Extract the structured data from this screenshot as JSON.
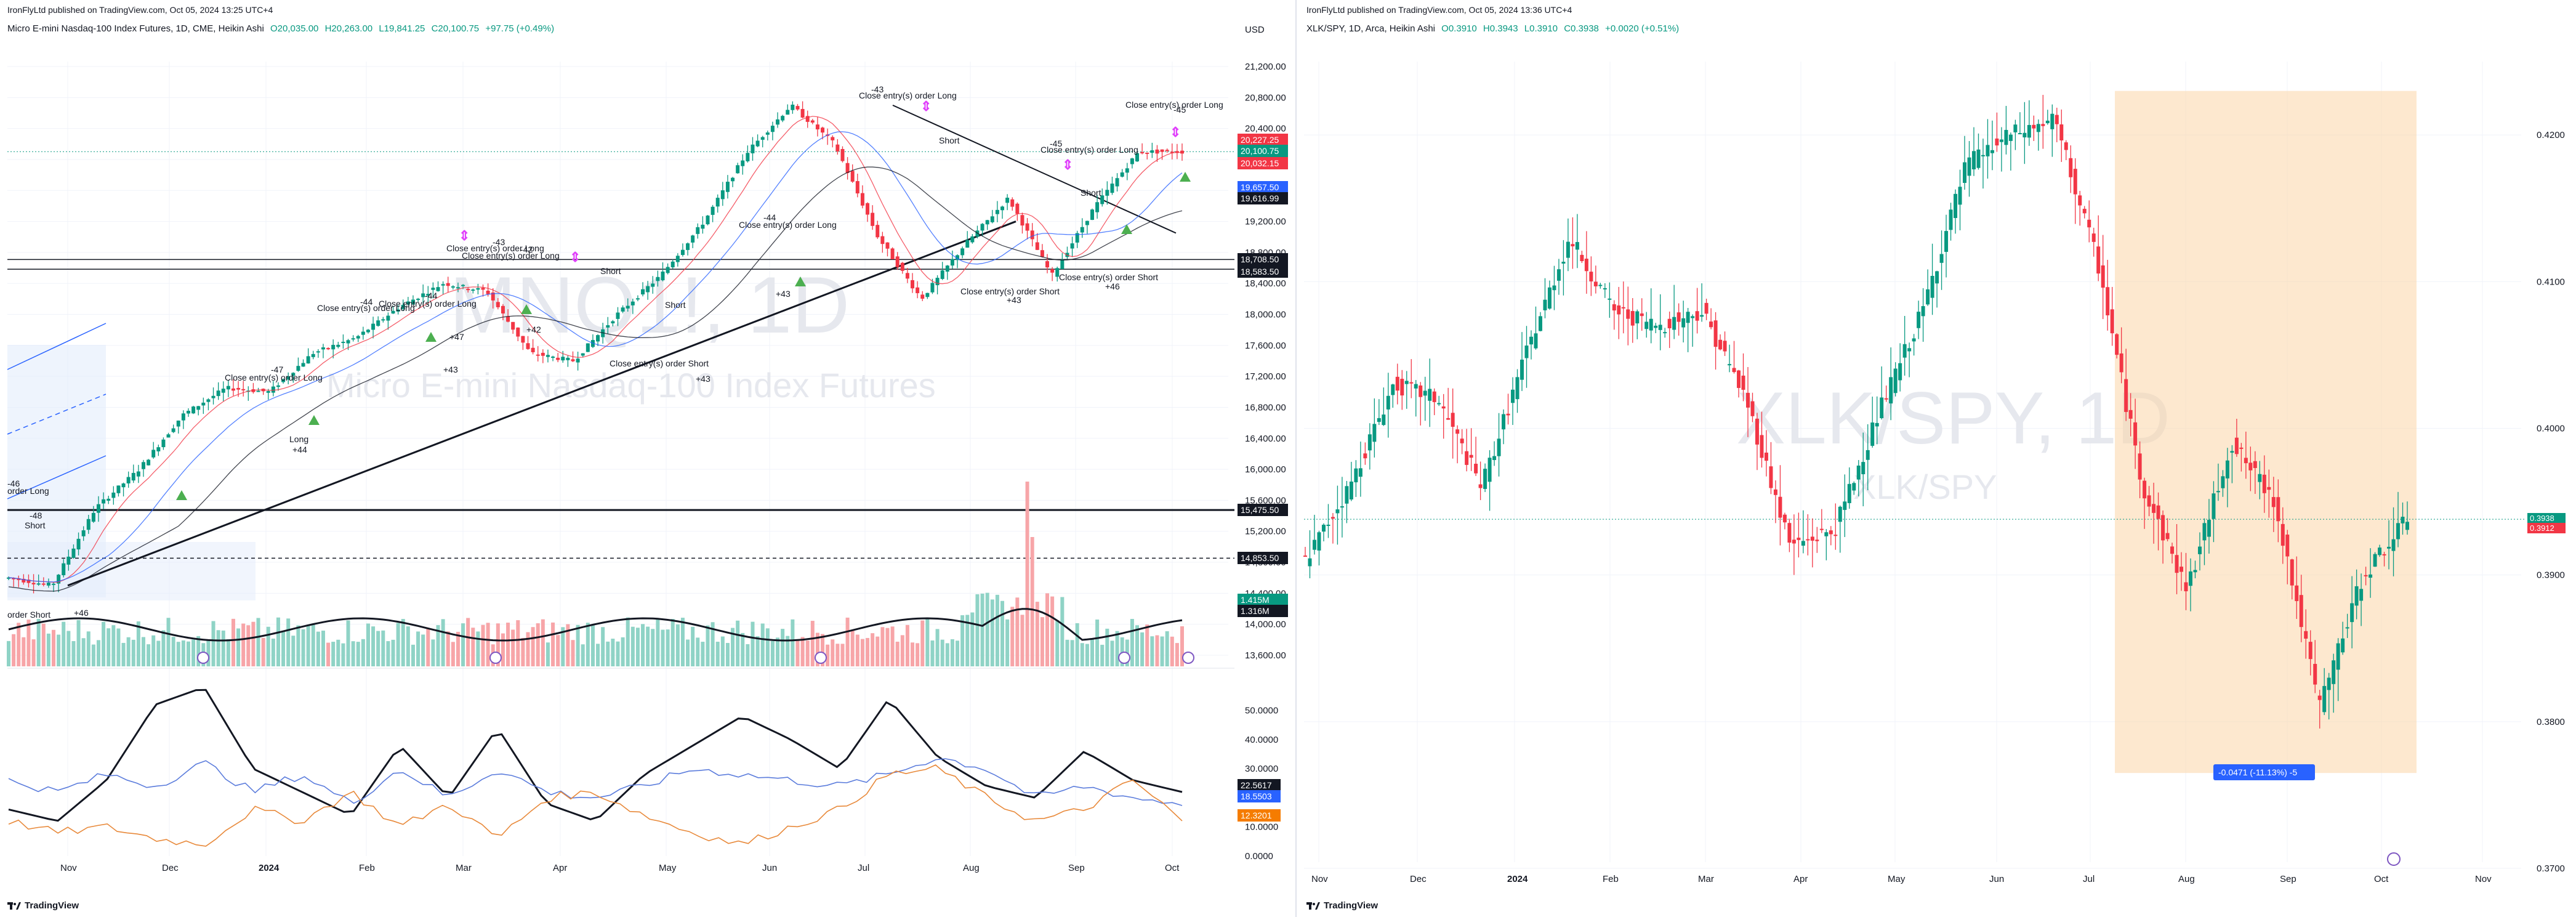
{
  "left": {
    "published": "IronFlyLtd published on TradingView.com, Oct 05, 2024 13:25 UTC+4",
    "symbol": "Micro E-mini Nasdaq-100 Index Futures, 1D, CME, Heikin Ashi",
    "ohlc": {
      "o": "O20,035.00",
      "h": "H20,263.00",
      "l": "L19,841.25",
      "c": "C20,100.75",
      "chg": "+97.75 (+0.49%)"
    },
    "currency": "USD",
    "watermark_sym": "MNQ1!, 1D",
    "watermark_name": "Micro E-mini Nasdaq-100 Index Futures",
    "footer": "TradingView",
    "price_ticks": [
      "21,200.00",
      "20,800.00",
      "20,400.00",
      "20,000.00",
      "19,600.00",
      "19,200.00",
      "18,800.00",
      "18,400.00",
      "18,000.00",
      "17,600.00",
      "17,200.00",
      "16,800.00",
      "16,400.00",
      "16,000.00",
      "15,600.00",
      "15,200.00",
      "14,800.00",
      "14,400.00",
      "14,000.00",
      "13,600.00"
    ],
    "price_badges": [
      {
        "label": "20,227.25",
        "color": "#f23645"
      },
      {
        "label": "20,100.75",
        "color": "#089981"
      },
      {
        "label": "20,032.15",
        "color": "#f23645"
      },
      {
        "label": "19,657.50",
        "color": "#2962ff"
      },
      {
        "label": "19,616.99",
        "color": "#131722"
      },
      {
        "label": "18,708.50",
        "color": "#131722"
      },
      {
        "label": "18,583.50",
        "color": "#131722"
      },
      {
        "label": "15,475.50",
        "color": "#131722"
      },
      {
        "label": "14,853.50",
        "color": "#131722"
      },
      {
        "label": "1.415M",
        "color": "#089981"
      },
      {
        "label": "1.316M",
        "color": "#131722"
      }
    ],
    "time_ticks": [
      "Nov",
      "Dec",
      "2024",
      "Feb",
      "Mar",
      "Apr",
      "May",
      "Jun",
      "Jul",
      "Aug",
      "Sep",
      "Oct"
    ],
    "osc_ticks": [
      "50.0000",
      "40.0000",
      "30.0000",
      "20.0000",
      "10.0000",
      "0.0000"
    ],
    "osc_badges": [
      {
        "label": "22.5617",
        "color": "#131722"
      },
      {
        "label": "18.5503",
        "color": "#2962ff"
      },
      {
        "label": "12.3201",
        "color": "#f57c00"
      }
    ],
    "annotations": [
      "Close entry(s) order Long",
      "Close entry(s) order Long",
      "Close entry(s) order Long",
      "Close entry(s) order Long",
      "Close entry(s) order Long",
      "Close entry(s) order Long",
      "Close entry(s) order Long",
      "Close entry(s) order Short",
      "Close entry(s) order Short",
      "Close entry(s) order Short",
      "Close entry(s) order Short",
      "-43",
      "-43",
      "-45",
      "-45",
      "-47",
      "-44",
      "-44",
      "-43",
      "-42",
      "-44",
      "-46",
      "-48",
      "+44",
      "+47",
      "+42",
      "+43",
      "+46",
      "+43",
      "+43",
      "Long",
      "Short"
    ]
  },
  "right": {
    "published": "IronFlyLtd published on TradingView.com, Oct 05, 2024 13:36 UTC+4",
    "symbol": "XLK/SPY, 1D, Arca, Heikin Ashi",
    "ohlc": {
      "o": "O0.3910",
      "h": "H0.3943",
      "l": "L0.3910",
      "c": "C0.3938",
      "chg": "+0.0020 (+0.51%)"
    },
    "watermark_sym": "XLK/SPY, 1D",
    "watermark_name": "XLK/SPY",
    "footer": "TradingView",
    "price_ticks": [
      "0.4200",
      "0.4100",
      "0.4000",
      "0.3900",
      "0.3800",
      "0.3700"
    ],
    "price_badges": [
      {
        "label": "0.3938",
        "color": "#089981"
      },
      {
        "label": "0.3912",
        "color": "#f23645"
      }
    ],
    "measure_label": "-0.0471 (-11.13%) -5",
    "time_ticks": [
      "Nov",
      "Dec",
      "2024",
      "Feb",
      "Mar",
      "Apr",
      "May",
      "Jun",
      "Jul",
      "Aug",
      "Sep",
      "Oct",
      "Nov"
    ]
  },
  "chart_data": [
    {
      "type": "candlestick",
      "title": "Micro E-mini Nasdaq-100 Index Futures, 1D, CME, Heikin Ashi",
      "ylim": [
        13600,
        21200
      ],
      "x": [
        "Oct 23",
        "Nov 1",
        "Nov 15",
        "Dec 1",
        "Dec 15",
        "Jan 1",
        "Jan 15",
        "Feb 1",
        "Feb 15",
        "Mar 1",
        "Mar 15",
        "Apr 1",
        "Apr 15",
        "May 1",
        "May 15",
        "Jun 1",
        "Jun 15",
        "Jul 1",
        "Jul 10",
        "Jul 20",
        "Aug 1",
        "Aug 5",
        "Aug 15",
        "Sep 1",
        "Sep 6",
        "Sep 15",
        "Oct 1",
        "Oct 4"
      ],
      "values": [
        14600,
        14500,
        15500,
        16000,
        16700,
        17050,
        17000,
        17500,
        17700,
        18100,
        18400,
        18300,
        17500,
        17400,
        18000,
        18500,
        19200,
        20100,
        20700,
        20200,
        19000,
        18200,
        18900,
        19500,
        18500,
        19400,
        20100,
        20100
      ],
      "grid": true
    },
    {
      "type": "line",
      "title": "",
      "series": [
        {
          "values": [
            16,
            12,
            26,
            52,
            58,
            30,
            22,
            14,
            38,
            20,
            44,
            18,
            12,
            28,
            38,
            48,
            40,
            30,
            54,
            34,
            24,
            20,
            36,
            26,
            22
          ]
        },
        {
          "values": [
            26,
            22,
            28,
            24,
            32,
            22,
            28,
            18,
            30,
            20,
            30,
            22,
            20,
            24,
            30,
            28,
            26,
            24,
            28,
            34,
            30,
            20,
            24,
            20,
            18
          ]
        },
        {
          "values": [
            12,
            8,
            10,
            6,
            4,
            16,
            12,
            22,
            10,
            18,
            6,
            20,
            22,
            14,
            8,
            4,
            10,
            16,
            28,
            30,
            20,
            12,
            16,
            26,
            12
          ]
        }
      ],
      "ylim": [
        0,
        55
      ]
    },
    {
      "type": "candlestick",
      "title": "XLK/SPY, 1D, Arca, Heikin Ashi",
      "ylim": [
        0.37,
        0.425
      ],
      "x": [
        "Oct 25",
        "Nov 15",
        "Dec 1",
        "Dec 15",
        "Jan 1",
        "Jan 20",
        "Feb 1",
        "Feb 15",
        "Mar 1",
        "Mar 15",
        "Apr 1",
        "Apr 20",
        "May 1",
        "May 15",
        "Jun 1",
        "Jun 15",
        "Jul 1",
        "Jul 10",
        "Jul 20",
        "Aug 1",
        "Aug 15",
        "Sep 1",
        "Sep 10",
        "Sep 20",
        "Oct 1",
        "Oct 4"
      ],
      "values": [
        0.391,
        0.396,
        0.403,
        0.402,
        0.396,
        0.405,
        0.413,
        0.408,
        0.407,
        0.408,
        0.402,
        0.392,
        0.393,
        0.401,
        0.408,
        0.418,
        0.42,
        0.421,
        0.411,
        0.396,
        0.389,
        0.399,
        0.395,
        0.381,
        0.39,
        0.3938
      ],
      "grid": true
    }
  ]
}
